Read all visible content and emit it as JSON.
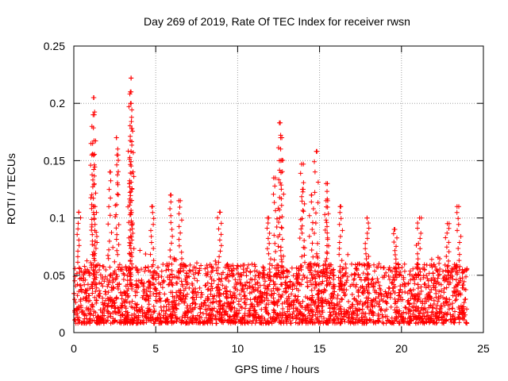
{
  "chart_data": {
    "type": "scatter",
    "title": "Day 269 of 2019, Rate Of TEC Index for receiver rwsn",
    "xlabel": "GPS time / hours",
    "ylabel": "ROTI / TECUs",
    "xlim": [
      0,
      25
    ],
    "ylim": [
      0,
      0.25
    ],
    "xticks": [
      0,
      5,
      10,
      15,
      20,
      25
    ],
    "xtick_labels": [
      "0",
      "5",
      "10",
      "15",
      "20",
      "25"
    ],
    "yticks": [
      0,
      0.05,
      0.1,
      0.15,
      0.2,
      0.25
    ],
    "ytick_labels": [
      "0",
      "0.05",
      "0.1",
      "0.15",
      "0.2",
      "0.25"
    ],
    "grid": true,
    "marker": "+",
    "color": "#ff0000",
    "series": [
      {
        "name": "ROTI",
        "description": "Dense band of points between roughly 0.01 and 0.06 TECU/s across 0-24 h, with peaks near the listed points",
        "x_range": [
          0,
          24
        ],
        "baseline_range": [
          0.008,
          0.06
        ],
        "peaks": [
          {
            "x": 0.3,
            "y": 0.105
          },
          {
            "x": 1.2,
            "y": 0.205
          },
          {
            "x": 1.25,
            "y": 0.19
          },
          {
            "x": 1.15,
            "y": 0.165
          },
          {
            "x": 1.2,
            "y": 0.155
          },
          {
            "x": 1.3,
            "y": 0.11
          },
          {
            "x": 2.2,
            "y": 0.14
          },
          {
            "x": 2.6,
            "y": 0.17
          },
          {
            "x": 2.7,
            "y": 0.155
          },
          {
            "x": 3.5,
            "y": 0.222
          },
          {
            "x": 3.45,
            "y": 0.21
          },
          {
            "x": 3.5,
            "y": 0.2
          },
          {
            "x": 3.55,
            "y": 0.178
          },
          {
            "x": 3.5,
            "y": 0.158
          },
          {
            "x": 3.4,
            "y": 0.13
          },
          {
            "x": 4.8,
            "y": 0.11
          },
          {
            "x": 5.9,
            "y": 0.12
          },
          {
            "x": 6.5,
            "y": 0.115
          },
          {
            "x": 8.9,
            "y": 0.105
          },
          {
            "x": 11.9,
            "y": 0.1
          },
          {
            "x": 12.3,
            "y": 0.135
          },
          {
            "x": 12.6,
            "y": 0.183
          },
          {
            "x": 12.7,
            "y": 0.17
          },
          {
            "x": 12.55,
            "y": 0.15
          },
          {
            "x": 13.9,
            "y": 0.147
          },
          {
            "x": 14.0,
            "y": 0.125
          },
          {
            "x": 14.5,
            "y": 0.12
          },
          {
            "x": 14.8,
            "y": 0.158
          },
          {
            "x": 15.4,
            "y": 0.13
          },
          {
            "x": 15.5,
            "y": 0.115
          },
          {
            "x": 16.3,
            "y": 0.11
          },
          {
            "x": 17.9,
            "y": 0.1
          },
          {
            "x": 19.6,
            "y": 0.09
          },
          {
            "x": 21.1,
            "y": 0.1
          },
          {
            "x": 22.8,
            "y": 0.095
          },
          {
            "x": 23.5,
            "y": 0.11
          }
        ]
      }
    ]
  }
}
